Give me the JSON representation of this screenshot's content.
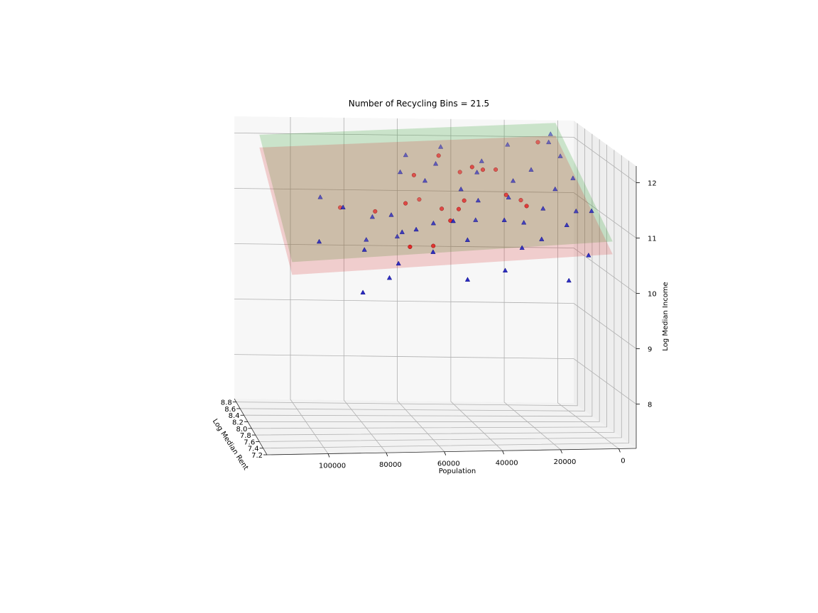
{
  "chart_data": {
    "type": "scatter3d",
    "title": "Number of Recycling Bins = 21.5",
    "x_axis": {
      "label": "Population",
      "ticks": [
        "100000",
        "80000",
        "60000",
        "40000",
        "20000",
        "0"
      ]
    },
    "y_axis": {
      "label": "Log Median Rent",
      "ticks": [
        "8.8",
        "8.6",
        "8.4",
        "8.2",
        "8.0",
        "7.8",
        "7.6",
        "7.4",
        "7.2"
      ]
    },
    "z_axis": {
      "label": "Log Median Income",
      "ticks": [
        "12",
        "11",
        "10",
        "9",
        "8"
      ]
    },
    "planes": [
      {
        "name": "",
        "color": "#2ca02c"
      },
      {
        "name": "",
        "color": "#d62728"
      }
    ],
    "series": [
      {
        "name": "",
        "marker": "circle",
        "color": "#e41a1c",
        "points": [
          [
            40000,
            8.2,
            11.8
          ],
          [
            50000,
            8.4,
            11.9
          ],
          [
            60000,
            8.3,
            11.6
          ],
          [
            45000,
            8.0,
            11.3
          ],
          [
            48000,
            7.9,
            11.2
          ],
          [
            52000,
            8.1,
            11.1
          ],
          [
            55000,
            8.6,
            11.0
          ],
          [
            30000,
            8.0,
            11.4
          ],
          [
            25000,
            7.8,
            11.3
          ],
          [
            75000,
            8.2,
            11.0
          ],
          [
            85000,
            8.5,
            10.9
          ],
          [
            20000,
            8.4,
            11.1
          ],
          [
            60000,
            7.6,
            10.7
          ],
          [
            70000,
            7.4,
            10.8
          ],
          [
            40000,
            8.6,
            11.5
          ],
          [
            10000,
            8.7,
            12.0
          ],
          [
            35000,
            8.3,
            11.7
          ],
          [
            65000,
            8.1,
            11.2
          ],
          [
            53000,
            7.7,
            11.1
          ],
          [
            28000,
            8.5,
            11.6
          ]
        ]
      },
      {
        "name": "",
        "marker": "triangle",
        "color": "#1f1fbf",
        "points": [
          [
            100000,
            7.6,
            10.8
          ],
          [
            90000,
            7.8,
            11.3
          ],
          [
            85000,
            7.5,
            10.7
          ],
          [
            80000,
            8.0,
            10.6
          ],
          [
            78000,
            7.3,
            10.3
          ],
          [
            76000,
            8.2,
            10.9
          ],
          [
            72000,
            7.9,
            11.1
          ],
          [
            70000,
            7.7,
            10.9
          ],
          [
            68000,
            8.1,
            10.6
          ],
          [
            66000,
            7.6,
            11.0
          ],
          [
            64000,
            8.4,
            11.6
          ],
          [
            62000,
            7.4,
            10.7
          ],
          [
            60000,
            8.6,
            11.8
          ],
          [
            58000,
            7.8,
            11.0
          ],
          [
            56000,
            8.3,
            11.5
          ],
          [
            54000,
            7.5,
            11.2
          ],
          [
            50000,
            8.5,
            11.7
          ],
          [
            48000,
            7.6,
            10.8
          ],
          [
            46000,
            8.7,
            11.9
          ],
          [
            44000,
            8.2,
            11.4
          ],
          [
            42000,
            7.9,
            11.0
          ],
          [
            40000,
            8.0,
            11.3
          ],
          [
            38000,
            7.3,
            10.4
          ],
          [
            36000,
            8.4,
            11.6
          ],
          [
            34000,
            7.7,
            11.1
          ],
          [
            32000,
            8.6,
            11.7
          ],
          [
            30000,
            7.5,
            10.7
          ],
          [
            28000,
            8.1,
            11.3
          ],
          [
            26000,
            7.8,
            11.0
          ],
          [
            24000,
            8.3,
            11.5
          ],
          [
            22000,
            7.6,
            10.8
          ],
          [
            20000,
            8.8,
            11.9
          ],
          [
            18000,
            7.9,
            11.2
          ],
          [
            15000,
            8.5,
            11.6
          ],
          [
            12000,
            7.7,
            11.0
          ],
          [
            10000,
            8.2,
            11.4
          ],
          [
            8000,
            7.4,
            10.6
          ],
          [
            6000,
            8.7,
            12.0
          ],
          [
            5000,
            8.0,
            11.1
          ],
          [
            3000,
            8.6,
            11.8
          ],
          [
            2000,
            7.8,
            11.2
          ],
          [
            1000,
            8.4,
            11.5
          ],
          [
            94000,
            8.3,
            11.2
          ],
          [
            88000,
            7.2,
            10.1
          ],
          [
            74000,
            7.4,
            10.5
          ],
          [
            52000,
            7.2,
            10.3
          ],
          [
            16000,
            7.3,
            10.2
          ],
          [
            4000,
            8.8,
            12.1
          ]
        ]
      }
    ]
  }
}
